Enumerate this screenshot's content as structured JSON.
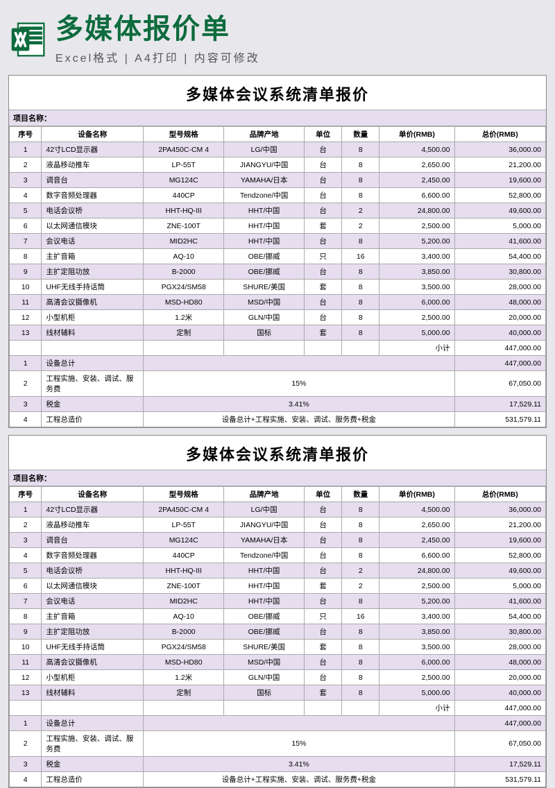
{
  "header": {
    "title": "多媒体报价单",
    "subtitle": "Excel格式 | A4打印 | 内容可修改"
  },
  "sheet": {
    "title": "多媒体会议系统清单报价",
    "project_label": "项目名称：",
    "columns": [
      "序号",
      "设备名称",
      "型号规格",
      "品牌产地",
      "单位",
      "数量",
      "单价(RMB)",
      "总价(RMB)"
    ],
    "rows": [
      {
        "idx": "1",
        "name": "42寸LCD显示器",
        "model": "2PA450C-CM 4",
        "brand": "LG/中国",
        "unit": "台",
        "qty": "8",
        "price": "4,500.00",
        "total": "36,000.00"
      },
      {
        "idx": "2",
        "name": "液晶移动推车",
        "model": "LP-55T",
        "brand": "JIANGYU/中国",
        "unit": "台",
        "qty": "8",
        "price": "2,650.00",
        "total": "21,200.00"
      },
      {
        "idx": "3",
        "name": "调音台",
        "model": "MG124C",
        "brand": "YAMAHA/日本",
        "unit": "台",
        "qty": "8",
        "price": "2,450.00",
        "total": "19,600.00"
      },
      {
        "idx": "4",
        "name": "数字音频处理器",
        "model": "440CP",
        "brand": "Tendzone/中国",
        "unit": "台",
        "qty": "8",
        "price": "6,600.00",
        "total": "52,800.00"
      },
      {
        "idx": "5",
        "name": "电话会议桥",
        "model": "HHT-HQ-III",
        "brand": "HHT/中国",
        "unit": "台",
        "qty": "2",
        "price": "24,800.00",
        "total": "49,600.00"
      },
      {
        "idx": "6",
        "name": "以太网通信模块",
        "model": "ZNE-100T",
        "brand": "HHT/中国",
        "unit": "套",
        "qty": "2",
        "price": "2,500.00",
        "total": "5,000.00"
      },
      {
        "idx": "7",
        "name": "会议电话",
        "model": "MID2HC",
        "brand": "HHT/中国",
        "unit": "台",
        "qty": "8",
        "price": "5,200.00",
        "total": "41,600.00"
      },
      {
        "idx": "8",
        "name": "主扩音箱",
        "model": "AQ-10",
        "brand": "OBE/挪威",
        "unit": "只",
        "qty": "16",
        "price": "3,400.00",
        "total": "54,400.00"
      },
      {
        "idx": "9",
        "name": "主扩定阻功放",
        "model": "B-2000",
        "brand": "OBE/挪威",
        "unit": "台",
        "qty": "8",
        "price": "3,850.00",
        "total": "30,800.00"
      },
      {
        "idx": "10",
        "name": "UHF无线手持话筒",
        "model": "PGX24/SM58",
        "brand": "SHURE/美国",
        "unit": "套",
        "qty": "8",
        "price": "3,500.00",
        "total": "28,000.00"
      },
      {
        "idx": "11",
        "name": "高清会议摄像机",
        "model": "MSD-HD80",
        "brand": "MSD/中国",
        "unit": "台",
        "qty": "8",
        "price": "6,000.00",
        "total": "48,000.00"
      },
      {
        "idx": "12",
        "name": "小型机柜",
        "model": "1.2米",
        "brand": "GLN/中国",
        "unit": "台",
        "qty": "8",
        "price": "2,500.00",
        "total": "20,000.00"
      },
      {
        "idx": "13",
        "name": "线材辅料",
        "model": "定制",
        "brand": "国标",
        "unit": "套",
        "qty": "8",
        "price": "5,000.00",
        "total": "40,000.00"
      }
    ],
    "subtotal_label": "小计",
    "subtotal_value": "447,000.00",
    "summary": [
      {
        "idx": "1",
        "name": "设备总计",
        "desc": "",
        "total": "447,000.00"
      },
      {
        "idx": "2",
        "name": "工程实施、安装、调试、服务费",
        "desc": "15%",
        "total": "67,050.00"
      },
      {
        "idx": "3",
        "name": "税金",
        "desc": "3.41%",
        "total": "17,529.11"
      },
      {
        "idx": "4",
        "name": "工程总造价",
        "desc": "设备总计+工程实施、安装、调试、服务费+税金",
        "total": "531,579.11"
      }
    ]
  }
}
